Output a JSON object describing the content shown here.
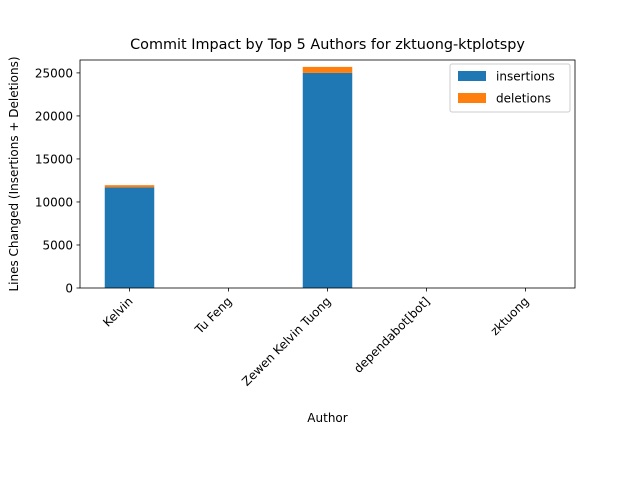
{
  "chart_data": {
    "type": "bar",
    "stacked": true,
    "title": "Commit Impact by Top 5 Authors for zktuong-ktplotspy",
    "xlabel": "Author",
    "ylabel": "Lines Changed (Insertions + Deletions)",
    "categories": [
      "Kelvin",
      "Tu Feng",
      "Zewen Kelvin Tuong",
      "dependabot[bot]",
      "zktuong"
    ],
    "series": [
      {
        "name": "insertions",
        "color": "#1f77b4",
        "values": [
          11700,
          0,
          25000,
          0,
          0
        ]
      },
      {
        "name": "deletions",
        "color": "#ff7f0e",
        "values": [
          250,
          0,
          700,
          0,
          0
        ]
      }
    ],
    "ylim": [
      0,
      26500
    ],
    "yticks": [
      0,
      5000,
      10000,
      15000,
      20000,
      25000
    ],
    "grid": false,
    "legend_position": "top-right"
  }
}
